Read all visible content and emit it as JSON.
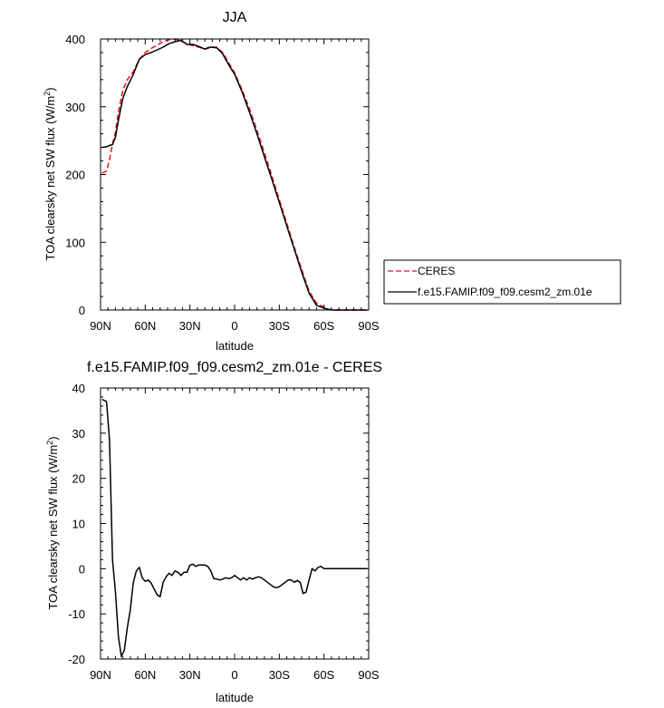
{
  "colors": {
    "ceres": "#e8121b",
    "model": "#000000",
    "axis": "#000000",
    "legend_border": "#000000"
  },
  "chart_data": [
    {
      "type": "line",
      "title": "JJA",
      "xlabel": "latitude",
      "ylabel": "TOA clearsky net SW flux (W/m",
      "ylabel_sup": "2",
      "ylabel_close": ")",
      "xlim": [
        90,
        -90
      ],
      "ylim": [
        0,
        400
      ],
      "xticks": [
        90,
        60,
        30,
        0,
        -30,
        -60,
        -90
      ],
      "xticklabels": [
        "90N",
        "60N",
        "30N",
        "0",
        "30S",
        "60S",
        "90S"
      ],
      "yticks": [
        0,
        100,
        200,
        300,
        400
      ],
      "yticklabels": [
        "0",
        "100",
        "200",
        "300",
        "400"
      ],
      "legend_placement": "right",
      "legend": [
        "CERES",
        "f.e15.FAMIP.f09_f09.cesm2_zm.01e"
      ],
      "series": [
        {
          "name": "CERES",
          "style": "dashed",
          "x": [
            89,
            86,
            84,
            82,
            80,
            78,
            75,
            72,
            68,
            64,
            60,
            56,
            52,
            48,
            44,
            40,
            36,
            32,
            28,
            24,
            20,
            18,
            16,
            12,
            8,
            4,
            0,
            -5,
            -10,
            -15,
            -20,
            -25,
            -30,
            -35,
            -40,
            -45,
            -50,
            -55,
            -60,
            -63,
            -66,
            -70,
            -75,
            -80,
            -85,
            -89
          ],
          "values": [
            202,
            205,
            222,
            245,
            262,
            292,
            325,
            340,
            352,
            370,
            380,
            386,
            391,
            396,
            399,
            400,
            397,
            393,
            390,
            388,
            385,
            386,
            388,
            388,
            380,
            365,
            350,
            325,
            297,
            265,
            232,
            198,
            163,
            128,
            93,
            60,
            28,
            10,
            4,
            1,
            0,
            0,
            0,
            0,
            0,
            0
          ]
        },
        {
          "name": "f.e15.FAMIP.f09_f09.cesm2_zm.01e",
          "style": "solid",
          "x": [
            89,
            86,
            84,
            82,
            80,
            78,
            75,
            72,
            68,
            64,
            60,
            56,
            52,
            48,
            44,
            40,
            36,
            32,
            28,
            24,
            20,
            18,
            16,
            12,
            8,
            4,
            0,
            -5,
            -10,
            -15,
            -20,
            -25,
            -30,
            -35,
            -40,
            -45,
            -50,
            -55,
            -60,
            -63,
            -66,
            -70,
            -75,
            -80,
            -85,
            -89
          ],
          "values": [
            240,
            241,
            243,
            244,
            255,
            280,
            313,
            330,
            348,
            370,
            377,
            380,
            384,
            388,
            393,
            396,
            398,
            392,
            392,
            389,
            385,
            387,
            388,
            387,
            378,
            362,
            348,
            322,
            292,
            260,
            226,
            193,
            159,
            124,
            90,
            56,
            25,
            7,
            3,
            1,
            0,
            0,
            0,
            0,
            0,
            0
          ]
        }
      ]
    },
    {
      "type": "line",
      "title": "f.e15.FAMIP.f09_f09.cesm2_zm.01e - CERES",
      "xlabel": "latitude",
      "ylabel": "TOA clearsky net SW flux (W/m",
      "ylabel_sup": "2",
      "ylabel_close": ")",
      "xlim": [
        90,
        -90
      ],
      "ylim": [
        -20,
        40
      ],
      "xticks": [
        90,
        60,
        30,
        0,
        -30,
        -60,
        -90
      ],
      "xticklabels": [
        "90N",
        "60N",
        "30N",
        "0",
        "30S",
        "60S",
        "90S"
      ],
      "yticks": [
        -20,
        -10,
        0,
        10,
        20,
        30,
        40
      ],
      "yticklabels": [
        "-20",
        "-10",
        "0",
        "10",
        "20",
        "30",
        "40"
      ],
      "series": [
        {
          "name": "",
          "style": "solid",
          "x": [
            89,
            86,
            84,
            82,
            80,
            78,
            76,
            74,
            72,
            70,
            68,
            66,
            64,
            62,
            60,
            58,
            56,
            54,
            52,
            50,
            48,
            46,
            44,
            42,
            40,
            38,
            36,
            34,
            32,
            30,
            28,
            26,
            24,
            22,
            20,
            18,
            16,
            14,
            12,
            10,
            8,
            6,
            4,
            2,
            0,
            -2,
            -4,
            -6,
            -8,
            -10,
            -12,
            -14,
            -16,
            -18,
            -20,
            -22,
            -24,
            -26,
            -28,
            -30,
            -32,
            -34,
            -36,
            -38,
            -40,
            -42,
            -44,
            -46,
            -48,
            -50,
            -52,
            -54,
            -56,
            -58,
            -60,
            -62,
            -63,
            -65,
            -67,
            -69,
            -71,
            -73,
            -75,
            -78,
            -81,
            -84,
            -87,
            -89
          ],
          "values": [
            37.5,
            37,
            28.5,
            2,
            -5,
            -15,
            -19.5,
            -18,
            -13,
            -9,
            -3,
            -0.5,
            0.3,
            -2,
            -2.8,
            -2.5,
            -3.2,
            -4.5,
            -5.8,
            -6.2,
            -3,
            -1.8,
            -1,
            -1.5,
            -0.5,
            -0.8,
            -1.5,
            -0.8,
            -0.8,
            0.8,
            1,
            0.5,
            0.8,
            0.8,
            0.8,
            0.5,
            -0.5,
            -2.2,
            -2.3,
            -2.5,
            -2.3,
            -2,
            -2.2,
            -2,
            -1.5,
            -2,
            -2.5,
            -2,
            -2.5,
            -2,
            -2.3,
            -2,
            -1.8,
            -2,
            -2.5,
            -3,
            -3.5,
            -4,
            -4.2,
            -4,
            -3.5,
            -3,
            -2.5,
            -2.5,
            -3,
            -2.6,
            -3,
            -5.5,
            -5.2,
            -2.5,
            0,
            -0.5,
            0.3,
            0.5,
            0,
            0,
            0,
            0,
            0,
            0,
            0,
            0,
            0,
            0,
            0,
            0,
            0,
            0
          ]
        }
      ]
    }
  ]
}
